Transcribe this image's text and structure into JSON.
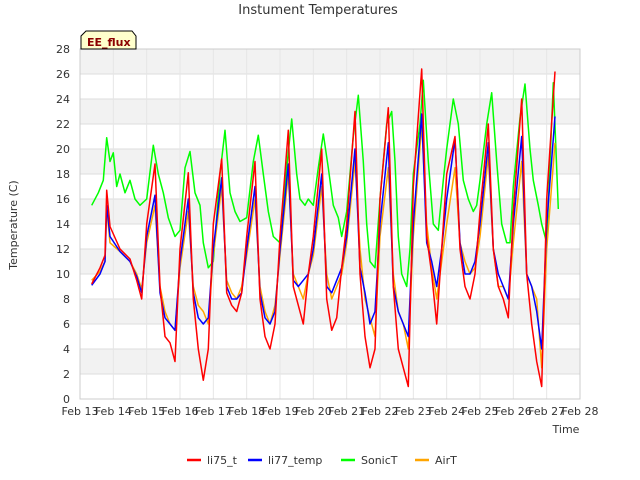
{
  "chart_data": {
    "type": "line",
    "title": "Instument Temperatures",
    "xlabel": "Time",
    "ylabel": "Temperature (C)",
    "badge": "EE_flux",
    "ylim": [
      0,
      28
    ],
    "yticks": [
      0,
      2,
      4,
      6,
      8,
      10,
      12,
      14,
      16,
      18,
      20,
      22,
      24,
      26,
      28
    ],
    "xlim": [
      13,
      28
    ],
    "xticks": [
      {
        "x": 13,
        "label": "Feb 13"
      },
      {
        "x": 14,
        "label": "Feb 14"
      },
      {
        "x": 15,
        "label": "Feb 15"
      },
      {
        "x": 16,
        "label": "Feb 16"
      },
      {
        "x": 17,
        "label": "Feb 17"
      },
      {
        "x": 18,
        "label": "Feb 18"
      },
      {
        "x": 19,
        "label": "Feb 19"
      },
      {
        "x": 20,
        "label": "Feb 20"
      },
      {
        "x": 21,
        "label": "Feb 21"
      },
      {
        "x": 22,
        "label": "Feb 22"
      },
      {
        "x": 23,
        "label": "Feb 23"
      },
      {
        "x": 24,
        "label": "Feb 24"
      },
      {
        "x": 25,
        "label": "Feb 25"
      },
      {
        "x": 26,
        "label": "Feb 26"
      },
      {
        "x": 27,
        "label": "Feb 27"
      },
      {
        "x": 28,
        "label": "Feb 28"
      }
    ],
    "grid": true,
    "legend_position": "bottom",
    "series": [
      {
        "name": "li75_t",
        "color": "#ff0000",
        "x": [
          13.35,
          13.6,
          13.75,
          13.8,
          13.9,
          14.2,
          14.5,
          14.7,
          14.85,
          15.0,
          15.25,
          15.4,
          15.55,
          15.7,
          15.85,
          16.0,
          16.25,
          16.4,
          16.55,
          16.7,
          16.85,
          17.0,
          17.25,
          17.4,
          17.55,
          17.7,
          17.85,
          18.0,
          18.25,
          18.4,
          18.55,
          18.7,
          18.85,
          19.0,
          19.25,
          19.4,
          19.55,
          19.7,
          19.85,
          20.0,
          20.25,
          20.4,
          20.55,
          20.7,
          20.85,
          21.0,
          21.25,
          21.4,
          21.55,
          21.7,
          21.85,
          22.0,
          22.25,
          22.4,
          22.55,
          22.7,
          22.85,
          23.0,
          23.25,
          23.4,
          23.55,
          23.7,
          23.85,
          24.0,
          24.25,
          24.4,
          24.55,
          24.7,
          24.85,
          25.0,
          25.25,
          25.4,
          25.55,
          25.7,
          25.85,
          26.0,
          26.25,
          26.4,
          26.55,
          26.7,
          26.85,
          27.0,
          27.25
        ],
        "y": [
          9.2,
          10.5,
          11.5,
          16.7,
          13.8,
          12.0,
          11.2,
          9.5,
          8.0,
          14.0,
          18.8,
          9.0,
          5.0,
          4.5,
          3.0,
          12.0,
          18.1,
          8.0,
          4.0,
          1.5,
          4.0,
          14.0,
          19.2,
          8.5,
          7.5,
          7.0,
          8.5,
          13.0,
          19.0,
          8.0,
          5.0,
          4.0,
          6.0,
          13.0,
          21.5,
          9.0,
          7.5,
          6.0,
          10.0,
          13.0,
          20.0,
          8.0,
          5.5,
          6.5,
          10.5,
          14.0,
          23.0,
          10.0,
          5.0,
          2.5,
          4.0,
          16.0,
          23.3,
          9.0,
          4.0,
          2.5,
          1.0,
          17.0,
          26.4,
          13.0,
          10.0,
          6.0,
          12.0,
          18.0,
          21.0,
          12.0,
          9.0,
          8.0,
          10.0,
          15.0,
          22.0,
          12.0,
          9.0,
          8.0,
          6.5,
          15.0,
          24.0,
          10.0,
          6.0,
          3.0,
          1.0,
          16.0,
          26.2
        ]
      },
      {
        "name": "li77_temp",
        "color": "#0000ff",
        "x": [
          13.35,
          13.6,
          13.75,
          13.8,
          13.9,
          14.2,
          14.5,
          14.7,
          14.85,
          15.0,
          15.25,
          15.4,
          15.55,
          15.7,
          15.85,
          16.0,
          16.25,
          16.4,
          16.55,
          16.7,
          16.85,
          17.0,
          17.25,
          17.4,
          17.55,
          17.7,
          17.85,
          18.0,
          18.25,
          18.4,
          18.55,
          18.7,
          18.85,
          19.0,
          19.25,
          19.4,
          19.55,
          19.7,
          19.85,
          20.0,
          20.25,
          20.4,
          20.55,
          20.7,
          20.85,
          21.0,
          21.25,
          21.4,
          21.55,
          21.7,
          21.85,
          22.0,
          22.25,
          22.4,
          22.55,
          22.7,
          22.85,
          23.0,
          23.25,
          23.4,
          23.55,
          23.7,
          23.85,
          24.0,
          24.25,
          24.4,
          24.55,
          24.7,
          24.85,
          25.0,
          25.25,
          25.4,
          25.55,
          25.7,
          25.85,
          26.0,
          26.25,
          26.4,
          26.55,
          26.7,
          26.85,
          27.0,
          27.25
        ],
        "y": [
          9.1,
          10.0,
          11.0,
          15.5,
          13.0,
          11.8,
          11.0,
          9.8,
          8.5,
          13.0,
          16.3,
          8.5,
          6.5,
          6.0,
          5.5,
          11.0,
          16.0,
          8.5,
          6.5,
          6.0,
          6.5,
          12.0,
          17.7,
          9.0,
          8.0,
          8.0,
          8.5,
          12.0,
          17.0,
          8.5,
          6.5,
          6.0,
          7.0,
          12.0,
          18.8,
          9.5,
          9.0,
          9.5,
          10.0,
          12.0,
          18.0,
          9.0,
          8.5,
          9.5,
          10.5,
          13.0,
          20.0,
          10.5,
          8.5,
          6.0,
          7.0,
          14.0,
          20.5,
          9.0,
          7.0,
          6.0,
          5.0,
          14.0,
          22.8,
          12.5,
          11.0,
          9.0,
          12.0,
          16.0,
          20.8,
          12.5,
          10.0,
          10.0,
          11.0,
          14.0,
          20.5,
          12.0,
          10.0,
          9.0,
          8.0,
          14.0,
          21.0,
          10.0,
          9.0,
          7.0,
          4.0,
          14.0,
          22.6
        ]
      },
      {
        "name": "SonicT",
        "color": "#00ff00",
        "x": [
          13.35,
          13.55,
          13.7,
          13.8,
          13.9,
          14.0,
          14.1,
          14.2,
          14.35,
          14.5,
          14.65,
          14.8,
          15.0,
          15.2,
          15.35,
          15.5,
          15.65,
          15.85,
          16.0,
          16.15,
          16.3,
          16.45,
          16.6,
          16.7,
          16.85,
          17.0,
          17.2,
          17.35,
          17.5,
          17.65,
          17.8,
          18.0,
          18.2,
          18.35,
          18.5,
          18.65,
          18.8,
          19.0,
          19.2,
          19.35,
          19.5,
          19.6,
          19.75,
          19.85,
          20.0,
          20.15,
          20.3,
          20.45,
          20.6,
          20.75,
          20.85,
          21.0,
          21.2,
          21.35,
          21.5,
          21.6,
          21.7,
          21.85,
          22.0,
          22.2,
          22.35,
          22.45,
          22.55,
          22.65,
          22.8,
          22.9,
          23.0,
          23.2,
          23.3,
          23.45,
          23.6,
          23.75,
          23.9,
          24.0,
          24.2,
          24.35,
          24.5,
          24.65,
          24.8,
          24.9,
          25.0,
          25.2,
          25.35,
          25.5,
          25.65,
          25.8,
          25.9,
          26.0,
          26.2,
          26.35,
          26.5,
          26.6,
          26.75,
          26.85,
          27.0,
          27.2,
          27.35
        ],
        "y": [
          15.5,
          16.5,
          17.5,
          20.9,
          19.0,
          19.7,
          17.0,
          18.0,
          16.5,
          17.5,
          16.0,
          15.5,
          16.0,
          20.3,
          18.0,
          16.5,
          14.5,
          13.0,
          13.5,
          18.5,
          19.8,
          16.5,
          15.5,
          12.5,
          10.5,
          11.0,
          18.0,
          21.5,
          16.5,
          15.0,
          14.2,
          14.5,
          19.0,
          21.1,
          18.0,
          15.0,
          13.0,
          12.5,
          18.5,
          22.4,
          18.0,
          16.0,
          15.5,
          16.0,
          15.5,
          18.5,
          21.2,
          18.5,
          15.5,
          14.5,
          13.0,
          15.0,
          21.0,
          24.3,
          19.0,
          14.0,
          11.0,
          10.5,
          16.0,
          22.0,
          23.0,
          19.0,
          13.0,
          10.0,
          9.0,
          12.0,
          18.0,
          22.0,
          25.5,
          19.0,
          14.0,
          13.5,
          17.5,
          20.0,
          24.0,
          22.0,
          17.5,
          16.0,
          15.0,
          15.5,
          17.5,
          22.0,
          24.5,
          19.0,
          14.0,
          12.5,
          12.5,
          17.0,
          22.5,
          25.2,
          20.0,
          17.5,
          15.5,
          14.0,
          12.5,
          25.3,
          15.2
        ]
      },
      {
        "name": "AirT",
        "color": "#ffa500",
        "x": [
          13.35,
          13.6,
          13.75,
          13.8,
          13.9,
          14.2,
          14.5,
          14.7,
          14.85,
          15.0,
          15.25,
          15.4,
          15.55,
          15.7,
          15.85,
          16.0,
          16.25,
          16.4,
          16.55,
          16.7,
          16.85,
          17.0,
          17.25,
          17.4,
          17.55,
          17.7,
          17.85,
          18.0,
          18.25,
          18.4,
          18.55,
          18.7,
          18.85,
          19.0,
          19.25,
          19.4,
          19.55,
          19.7,
          19.85,
          20.0,
          20.25,
          20.4,
          20.55,
          20.7,
          20.85,
          21.0,
          21.25,
          21.4,
          21.55,
          21.7,
          21.85,
          22.0,
          22.25,
          22.4,
          22.55,
          22.7,
          22.85,
          23.0,
          23.25,
          23.4,
          23.55,
          23.7,
          23.85,
          24.0,
          24.25,
          24.4,
          24.55,
          24.7,
          24.85,
          25.0,
          25.25,
          25.4,
          25.55,
          25.7,
          25.85,
          26.0,
          26.25,
          26.4,
          26.55,
          26.7,
          26.85,
          27.0,
          27.25
        ],
        "y": [
          9.5,
          10.2,
          11.0,
          15.2,
          12.5,
          11.8,
          11.0,
          10.0,
          8.8,
          12.5,
          15.5,
          9.0,
          7.0,
          6.0,
          5.5,
          10.5,
          15.0,
          9.0,
          7.5,
          7.0,
          6.0,
          11.5,
          17.0,
          9.5,
          8.5,
          8.0,
          9.0,
          11.5,
          16.0,
          9.0,
          7.0,
          6.0,
          7.5,
          11.5,
          18.0,
          10.0,
          9.0,
          8.0,
          10.0,
          11.5,
          17.0,
          10.0,
          8.0,
          9.0,
          10.0,
          12.5,
          19.0,
          12.0,
          8.0,
          6.5,
          5.0,
          13.0,
          18.5,
          10.0,
          7.0,
          6.0,
          4.0,
          13.0,
          22.0,
          14.0,
          10.5,
          8.0,
          11.0,
          14.0,
          18.5,
          12.5,
          11.0,
          10.0,
          10.5,
          13.0,
          19.5,
          12.0,
          9.0,
          9.0,
          8.0,
          12.5,
          19.0,
          10.0,
          9.0,
          8.0,
          2.5,
          12.0,
          20.5
        ]
      }
    ]
  }
}
